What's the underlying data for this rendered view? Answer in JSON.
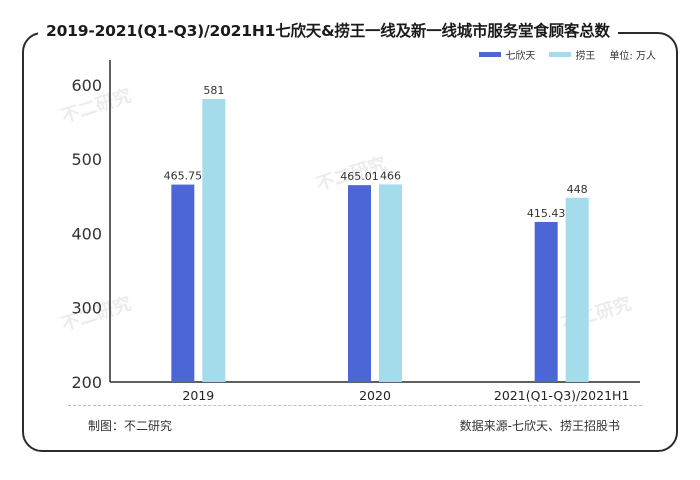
{
  "title": "2019-2021(Q1-Q3)/2021H1七欣天&捞王一线及新一线城市服务堂食顾客总数",
  "unit_label": "单位: 万人",
  "footer": {
    "maker": "制图：不二研究",
    "source": "数据来源-七欣天、捞王招股书"
  },
  "watermark": "不二研究",
  "colors": {
    "series1": "#4d66d6",
    "series2": "#a4dcec",
    "axis": "#2b2b2b"
  },
  "chart_data": {
    "type": "bar",
    "categories": [
      "2019",
      "2020",
      "2021(Q1-Q3)/2021H1"
    ],
    "series": [
      {
        "name": "七欣天",
        "values": [
          465.75,
          465.01,
          415.43
        ],
        "labels": [
          "465.75",
          "465.01",
          "415.43"
        ]
      },
      {
        "name": "捞王",
        "values": [
          581,
          466,
          448
        ],
        "labels": [
          "581",
          "466",
          "448"
        ]
      }
    ],
    "yticks": [
      "200",
      "300",
      "400",
      "500",
      "600"
    ],
    "ylim": [
      200,
      620
    ],
    "legend_position": "top-right",
    "grid": false
  }
}
